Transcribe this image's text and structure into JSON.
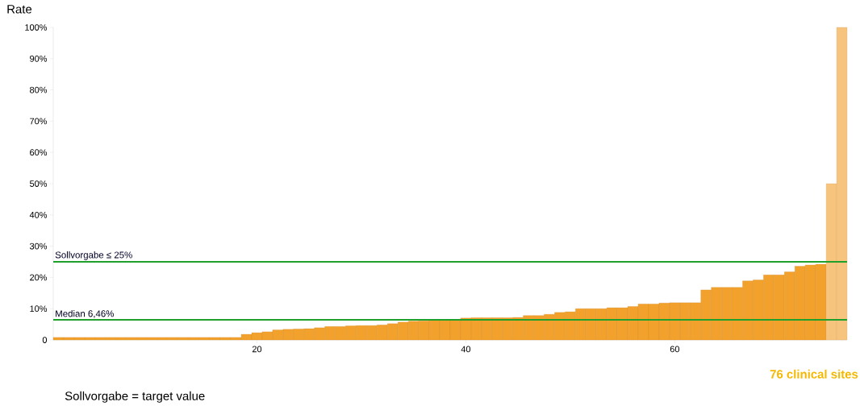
{
  "chart_data": {
    "type": "bar",
    "ylabel": "Rate",
    "x": [
      1,
      2,
      3,
      4,
      5,
      6,
      7,
      8,
      9,
      10,
      11,
      12,
      13,
      14,
      15,
      16,
      17,
      18,
      19,
      20,
      21,
      22,
      23,
      24,
      25,
      26,
      27,
      28,
      29,
      30,
      31,
      32,
      33,
      34,
      35,
      36,
      37,
      38,
      39,
      40,
      41,
      42,
      43,
      44,
      45,
      46,
      47,
      48,
      49,
      50,
      51,
      52,
      53,
      54,
      55,
      56,
      57,
      58,
      59,
      60,
      61,
      62,
      63,
      64,
      65,
      66,
      67,
      68,
      69,
      70,
      71,
      72,
      73,
      74,
      75,
      76
    ],
    "values": [
      0.8,
      0.8,
      0.8,
      0.8,
      0.8,
      0.8,
      0.8,
      0.8,
      0.8,
      0.8,
      0.8,
      0.8,
      0.8,
      0.8,
      0.8,
      0.8,
      0.8,
      0.8,
      1.8,
      2.3,
      2.6,
      3.2,
      3.4,
      3.5,
      3.6,
      3.9,
      4.3,
      4.3,
      4.5,
      4.6,
      4.6,
      4.8,
      5.2,
      5.7,
      6.0,
      6.1,
      6.3,
      6.4,
      6.5,
      7.0,
      7.1,
      7.1,
      7.1,
      7.1,
      7.2,
      7.8,
      7.8,
      8.2,
      8.8,
      9.0,
      10.0,
      10.0,
      10.0,
      10.3,
      10.3,
      10.7,
      11.5,
      11.5,
      11.8,
      11.9,
      11.9,
      11.9,
      16.0,
      16.8,
      16.8,
      16.8,
      18.9,
      19.2,
      20.8,
      20.8,
      21.8,
      23.6,
      24.0,
      24.2,
      50,
      100
    ],
    "colors": [
      "#f2a12c",
      "#f2a12c",
      "#f2a12c",
      "#f2a12c",
      "#f2a12c",
      "#f2a12c",
      "#f2a12c",
      "#f2a12c",
      "#f2a12c",
      "#f2a12c",
      "#f2a12c",
      "#f2a12c",
      "#f2a12c",
      "#f2a12c",
      "#f2a12c",
      "#f2a12c",
      "#f2a12c",
      "#f2a12c",
      "#f2a12c",
      "#f2a12c",
      "#f2a12c",
      "#f2a12c",
      "#f2a12c",
      "#f2a12c",
      "#f2a12c",
      "#f2a12c",
      "#f2a12c",
      "#f2a12c",
      "#f2a12c",
      "#f2a12c",
      "#f2a12c",
      "#f2a12c",
      "#f2a12c",
      "#f2a12c",
      "#f2a12c",
      "#f2a12c",
      "#f2a12c",
      "#f2a12c",
      "#f2a12c",
      "#f2a12c",
      "#f2a12c",
      "#f2a12c",
      "#f2a12c",
      "#f2a12c",
      "#f2a12c",
      "#f2a12c",
      "#f2a12c",
      "#f2a12c",
      "#f2a12c",
      "#f2a12c",
      "#f2a12c",
      "#f2a12c",
      "#f2a12c",
      "#f2a12c",
      "#f2a12c",
      "#f2a12c",
      "#f2a12c",
      "#f2a12c",
      "#f2a12c",
      "#f2a12c",
      "#f2a12c",
      "#f2a12c",
      "#f2a12c",
      "#f2a12c",
      "#f2a12c",
      "#f2a12c",
      "#f2a12c",
      "#f2a12c",
      "#f2a12c",
      "#f2a12c",
      "#f2a12c",
      "#f2a12c",
      "#f2a12c",
      "#f2a12c",
      "#f7c47e",
      "#f7c47e"
    ],
    "xlim": [
      0.5,
      76.5
    ],
    "xticks": [
      20,
      40,
      60
    ],
    "ylim": [
      0,
      100
    ],
    "yticks": [
      0,
      {
        "value": 10,
        "label": "10%"
      },
      {
        "value": 20,
        "label": "20%"
      },
      {
        "value": 30,
        "label": "30%"
      },
      {
        "value": 40,
        "label": "40%"
      },
      {
        "value": 50,
        "label": "50%"
      },
      {
        "value": 60,
        "label": "60%"
      },
      {
        "value": 70,
        "label": "70%"
      },
      {
        "value": 80,
        "label": "80%"
      },
      {
        "value": 90,
        "label": "90%"
      },
      {
        "value": 100,
        "label": "100%"
      }
    ],
    "ref_lines": [
      {
        "axis": "y",
        "value": 25,
        "label": "Sollvorgabe ≤ 25%",
        "color": "#1fa02d"
      },
      {
        "axis": "y",
        "value": 6.46,
        "label": "Median 6,46%",
        "color": "#1fa02d"
      }
    ],
    "annotations": [
      "76 clinical sites",
      "Sollvorgabe = target value"
    ]
  }
}
